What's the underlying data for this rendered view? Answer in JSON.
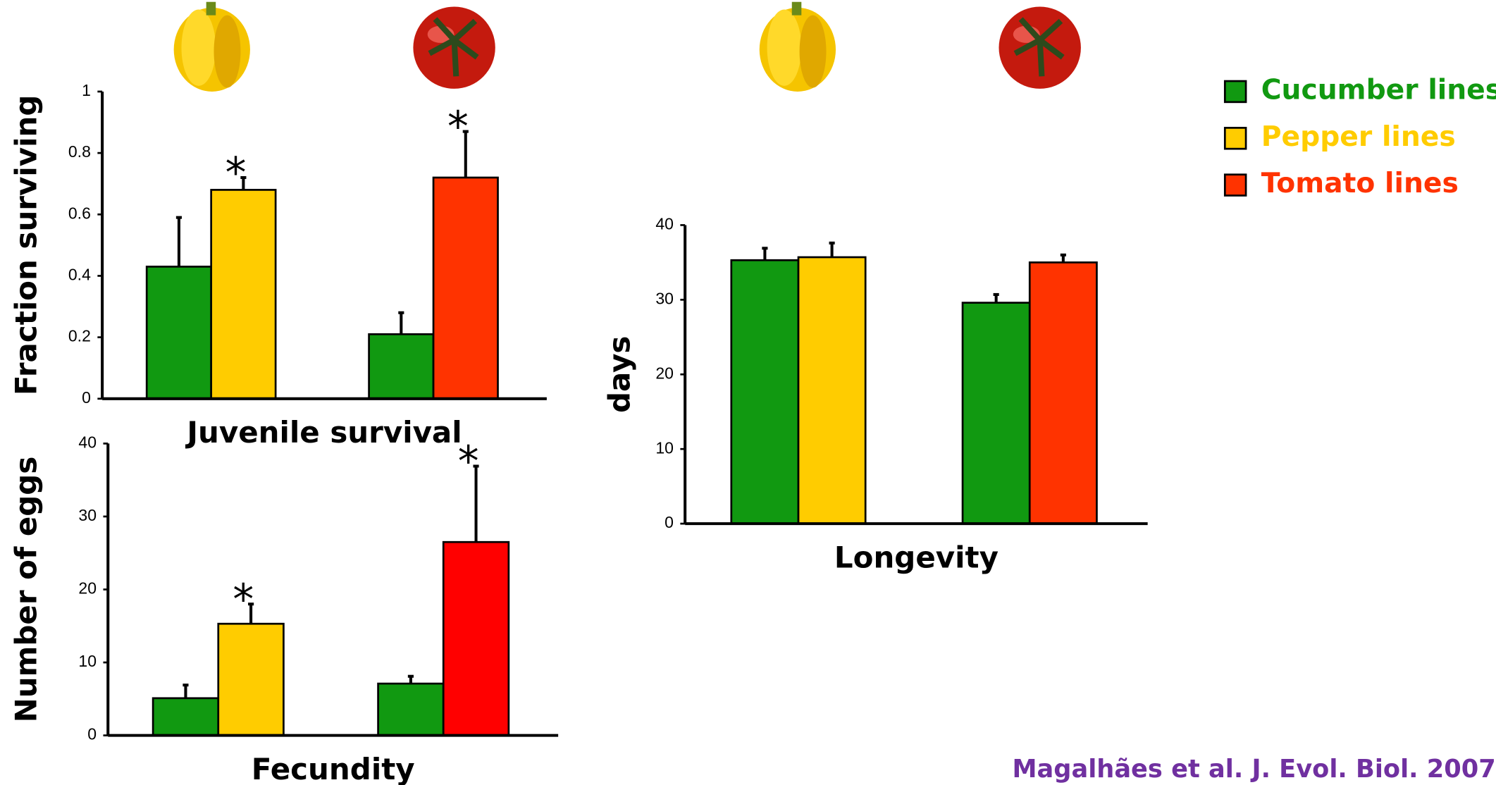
{
  "chart_data": [
    {
      "type": "bar",
      "xlabel": "Juvenile survival",
      "ylabel": "Fraction surviving",
      "categories": [
        null,
        null
      ],
      "ylim": [
        0,
        1
      ],
      "yticks": [
        0,
        0.2,
        0.4,
        0.6,
        0.8,
        1
      ],
      "series": [
        {
          "name": "Cucumber lines",
          "color": "#119911",
          "values": [
            0.43,
            0.21
          ],
          "errors": [
            0.16,
            0.07
          ]
        },
        {
          "name": "Pepper lines",
          "color": "#ffcc00",
          "values": [
            0.68,
            null
          ],
          "errors": [
            0.04,
            null
          ],
          "value_labels": [
            "*",
            null
          ]
        },
        {
          "name": "Tomato lines",
          "color": "#ff3300",
          "values": [
            null,
            0.72
          ],
          "errors": [
            null,
            0.15
          ],
          "value_labels": [
            null,
            "*"
          ]
        }
      ]
    },
    {
      "type": "bar",
      "xlabel": "Fecundity",
      "ylabel": "Number of eggs",
      "categories": [
        null,
        null
      ],
      "ylim": [
        0,
        40
      ],
      "yticks": [
        0,
        10,
        20,
        30,
        40
      ],
      "series": [
        {
          "name": "Cucumber lines",
          "color": "#119911",
          "values": [
            5.1,
            7.1
          ],
          "errors": [
            1.8,
            1
          ]
        },
        {
          "name": "Pepper lines",
          "color": "#ffcc00",
          "values": [
            15.3,
            null
          ],
          "errors": [
            2.7,
            null
          ],
          "value_labels": [
            "*",
            null
          ]
        },
        {
          "name": "Tomato lines",
          "color": "#ff0000",
          "values": [
            null,
            26.5
          ],
          "errors": [
            null,
            10.4
          ],
          "value_labels": [
            null,
            "*"
          ]
        }
      ]
    },
    {
      "type": "bar",
      "xlabel": "Longevity",
      "ylabel": "days",
      "categories": [
        null,
        null
      ],
      "ylim": [
        0,
        40
      ],
      "yticks": [
        0,
        10,
        20,
        30,
        40
      ],
      "series": [
        {
          "name": "Cucumber lines",
          "color": "#119911",
          "values": [
            35.3,
            29.6
          ],
          "errors": [
            1.6,
            1.1
          ]
        },
        {
          "name": "Pepper lines",
          "color": "#ffcc00",
          "values": [
            35.7,
            null
          ],
          "errors": [
            1.9,
            null
          ]
        },
        {
          "name": "Tomato lines",
          "color": "#ff3300",
          "values": [
            null,
            35
          ],
          "errors": [
            null,
            1
          ]
        }
      ]
    }
  ],
  "citation": "Magalhães et al. J. Evol. Biol. 2007"
}
